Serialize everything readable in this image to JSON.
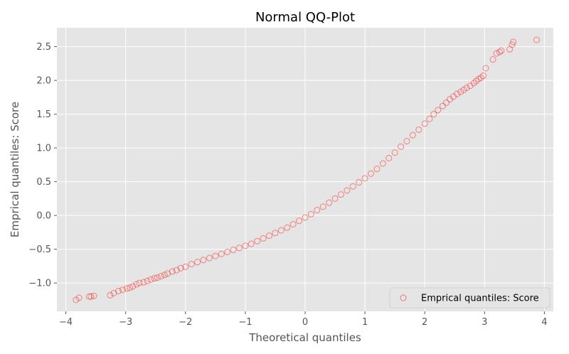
{
  "chart_data": {
    "type": "scatter",
    "title": "Normal QQ-Plot",
    "xlabel": "Theoretical quantiles",
    "ylabel": "Emprical quantiles: Score",
    "xlim": [
      -4.15,
      4.15
    ],
    "ylim": [
      -1.42,
      2.78
    ],
    "xticks": [
      -4,
      -3,
      -2,
      -1,
      0,
      1,
      2,
      3,
      4
    ],
    "xtick_labels": [
      "−4",
      "−3",
      "−2",
      "−1",
      "0",
      "1",
      "2",
      "3",
      "4"
    ],
    "yticks": [
      -1.0,
      -0.5,
      0.0,
      0.5,
      1.0,
      1.5,
      2.0,
      2.5
    ],
    "ytick_labels": [
      "−1.0",
      "−0.5",
      "0.0",
      "0.5",
      "1.0",
      "1.5",
      "2.0",
      "2.5"
    ],
    "grid": true,
    "legend_position": "bottom-right",
    "marker": "open-circle",
    "marker_color": "#ff0000",
    "background": "#e5e5e5",
    "series": [
      {
        "name": "Emprical quantiles: Score",
        "x": [
          -3.83,
          -3.78,
          -3.61,
          -3.58,
          -3.53,
          -3.26,
          -3.2,
          -3.12,
          -3.05,
          -2.98,
          -2.93,
          -2.88,
          -2.82,
          -2.77,
          -2.7,
          -2.64,
          -2.58,
          -2.52,
          -2.47,
          -2.41,
          -2.35,
          -2.3,
          -2.22,
          -2.15,
          -2.08,
          -2.0,
          -1.9,
          -1.8,
          -1.7,
          -1.6,
          -1.5,
          -1.4,
          -1.3,
          -1.2,
          -1.1,
          -1.0,
          -0.9,
          -0.8,
          -0.7,
          -0.6,
          -0.5,
          -0.4,
          -0.3,
          -0.2,
          -0.1,
          0.0,
          0.1,
          0.2,
          0.3,
          0.4,
          0.5,
          0.6,
          0.7,
          0.8,
          0.9,
          1.0,
          1.1,
          1.2,
          1.3,
          1.4,
          1.5,
          1.6,
          1.7,
          1.8,
          1.9,
          2.0,
          2.08,
          2.15,
          2.22,
          2.3,
          2.36,
          2.42,
          2.48,
          2.54,
          2.6,
          2.65,
          2.7,
          2.76,
          2.82,
          2.86,
          2.9,
          2.94,
          2.98,
          3.02,
          3.14,
          3.2,
          3.25,
          3.28,
          3.42,
          3.46,
          3.48,
          3.87
        ],
        "y": [
          -1.25,
          -1.22,
          -1.2,
          -1.2,
          -1.19,
          -1.18,
          -1.15,
          -1.12,
          -1.1,
          -1.08,
          -1.07,
          -1.05,
          -1.02,
          -1.0,
          -0.99,
          -0.97,
          -0.95,
          -0.93,
          -0.92,
          -0.9,
          -0.88,
          -0.86,
          -0.83,
          -0.81,
          -0.78,
          -0.76,
          -0.72,
          -0.69,
          -0.66,
          -0.63,
          -0.6,
          -0.57,
          -0.54,
          -0.51,
          -0.48,
          -0.45,
          -0.42,
          -0.38,
          -0.34,
          -0.3,
          -0.26,
          -0.22,
          -0.18,
          -0.13,
          -0.08,
          -0.03,
          0.02,
          0.08,
          0.13,
          0.19,
          0.25,
          0.31,
          0.37,
          0.43,
          0.49,
          0.55,
          0.62,
          0.69,
          0.77,
          0.85,
          0.93,
          1.02,
          1.1,
          1.19,
          1.27,
          1.36,
          1.43,
          1.5,
          1.56,
          1.62,
          1.67,
          1.72,
          1.76,
          1.8,
          1.83,
          1.86,
          1.89,
          1.92,
          1.96,
          1.99,
          2.02,
          2.04,
          2.07,
          2.18,
          2.31,
          2.4,
          2.42,
          2.44,
          2.46,
          2.53,
          2.57,
          2.6
        ]
      }
    ]
  }
}
